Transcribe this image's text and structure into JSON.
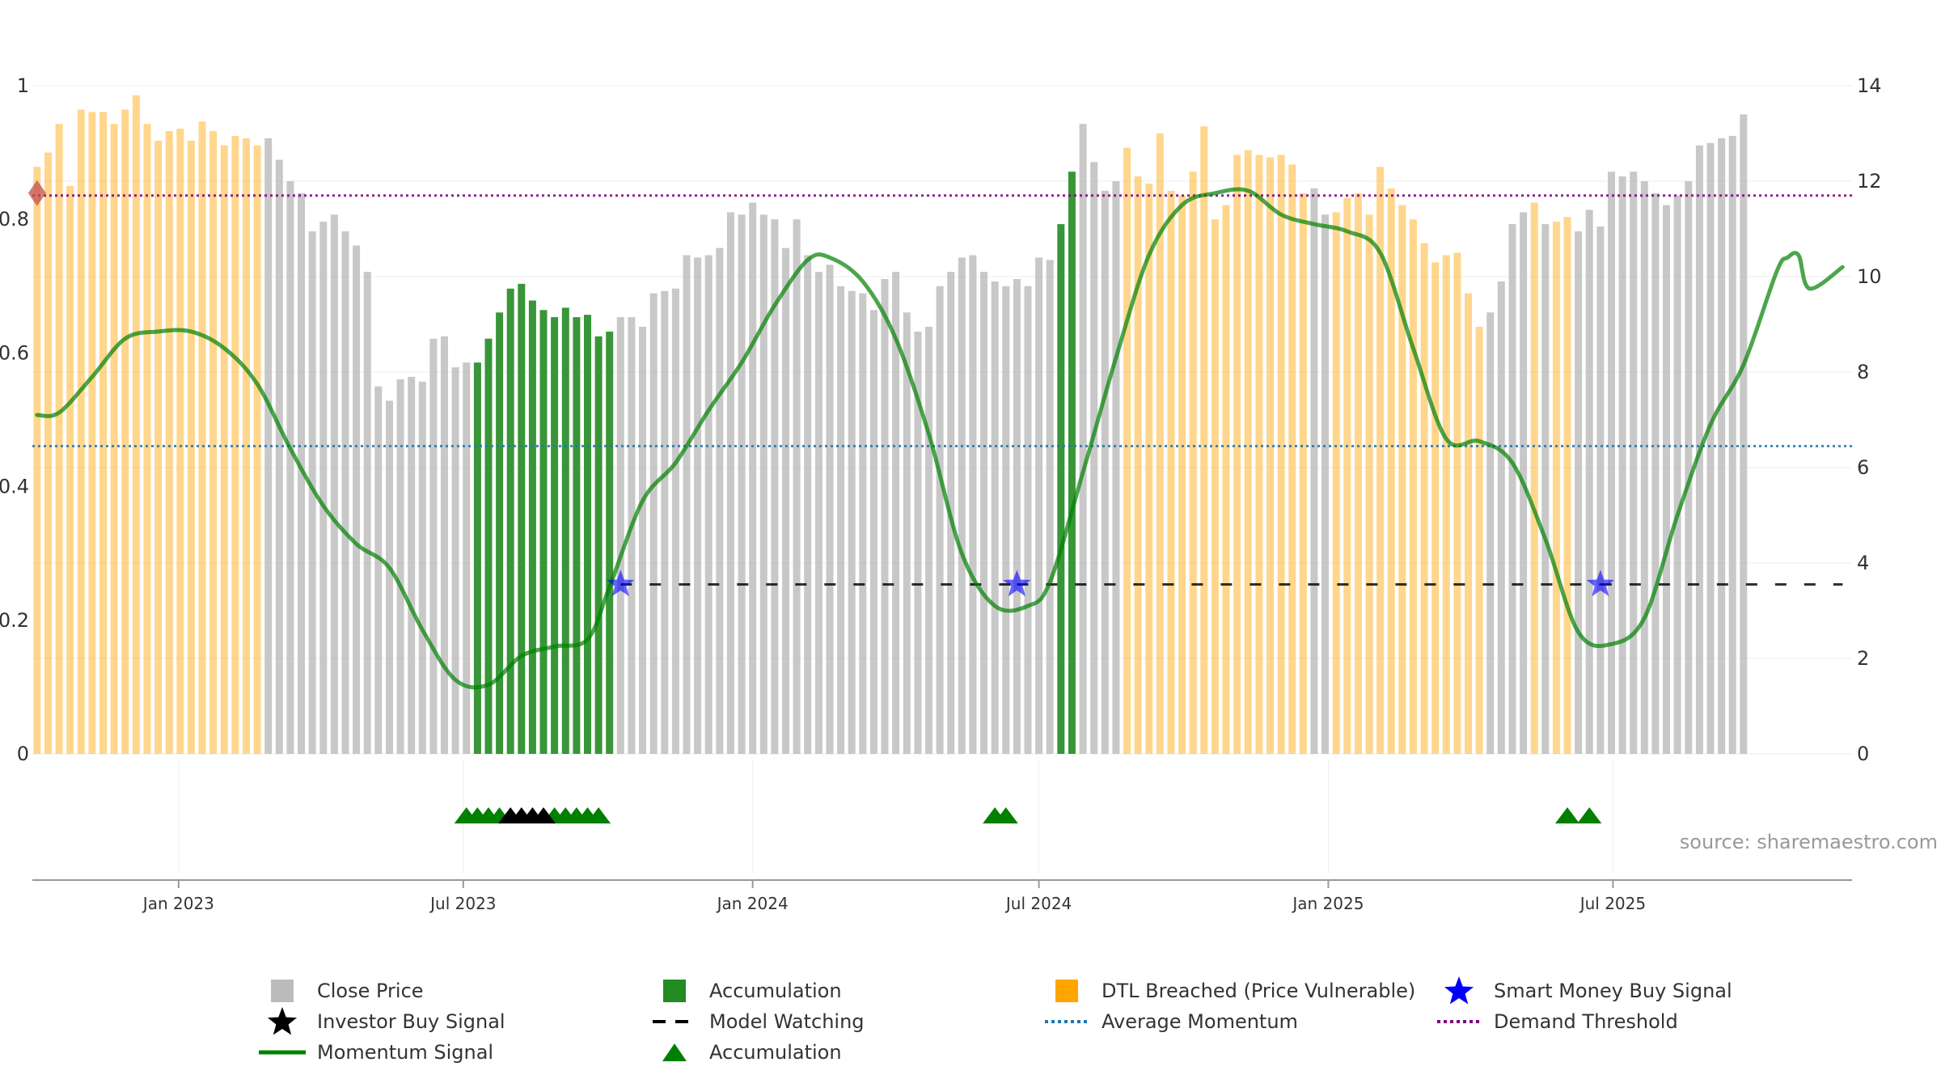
{
  "chart_data": {
    "type": "bar",
    "x_axis": {
      "tick_labels": [
        "Jan 2023",
        "Jul 2023",
        "Jan 2024",
        "Jul 2024",
        "Jan 2025",
        "Jul 2025"
      ]
    },
    "y_left": {
      "range": [
        0,
        1
      ],
      "tick_labels": [
        "0",
        "0.2",
        "0.4",
        "0.6",
        "0.8",
        "1"
      ]
    },
    "y_right": {
      "range": [
        0,
        14
      ],
      "tick_labels": [
        "0",
        "2",
        "4",
        "6",
        "8",
        "10",
        "12",
        "14"
      ]
    },
    "bar_states": {
      "G": "Close Price",
      "A": "Accumulation",
      "O": "DTL Breached (Price Vulnerable)"
    },
    "bars": {
      "start_date": "2022-10-03",
      "period": "weekly",
      "values": [
        12.3,
        12.6,
        13.2,
        11.9,
        13.5,
        13.45,
        13.45,
        13.2,
        13.5,
        13.8,
        13.2,
        12.85,
        13.05,
        13.1,
        12.85,
        13.25,
        13.05,
        12.75,
        12.95,
        12.9,
        12.75,
        12.9,
        12.45,
        12.0,
        11.75,
        10.95,
        11.15,
        11.3,
        10.95,
        10.65,
        10.1,
        7.7,
        7.4,
        7.85,
        7.9,
        7.8,
        8.7,
        8.75,
        8.1,
        8.2,
        8.2,
        8.7,
        9.25,
        9.75,
        9.85,
        9.5,
        9.3,
        9.15,
        9.35,
        9.15,
        9.2,
        8.75,
        8.85,
        9.15,
        9.15,
        8.95,
        9.65,
        9.7,
        9.75,
        10.45,
        10.4,
        10.45,
        10.6,
        11.35,
        11.3,
        11.55,
        11.3,
        11.2,
        10.6,
        11.2,
        10.45,
        10.1,
        10.25,
        9.8,
        9.7,
        9.65,
        9.3,
        9.95,
        10.1,
        9.25,
        8.85,
        8.95,
        9.8,
        10.1,
        10.4,
        10.45,
        10.1,
        9.9,
        9.8,
        9.95,
        9.8,
        10.4,
        10.35,
        11.1,
        12.2,
        13.2,
        12.4,
        11.8,
        12.0,
        12.7,
        12.1,
        11.95,
        13.0,
        11.8,
        11.7,
        12.2,
        13.15,
        11.2,
        11.5,
        12.55,
        12.65,
        12.55,
        12.5,
        12.55,
        12.35,
        11.75,
        11.85,
        11.3,
        11.35,
        11.65,
        11.75,
        11.3,
        12.3,
        11.85,
        11.5,
        11.2,
        10.7,
        10.3,
        10.45,
        10.5,
        9.65,
        8.95,
        9.25,
        9.9,
        11.1,
        11.35,
        11.55,
        11.1,
        11.15,
        11.25,
        10.95,
        11.4,
        11.05,
        12.2,
        12.1,
        12.2,
        12.0,
        11.75,
        11.5,
        11.7,
        12.0,
        12.75,
        12.8,
        12.9,
        12.95,
        13.4
      ],
      "states": "OOOOOOOOOOOOOOOOOOOOOGGGGGGGGGGGGGGGGGGGAAAAAAAAAAAAAGGGGGGGGGGGGGGGGGGGGGGGGGGGGGGGGGGGGGGGGAAGGGGOOOOOOOOOOOOOOOOOGGOOOOOOOOOOOOOOGGGGOGOOGGGGGGGGGGGGGGGGGGGGAGAGGOOOOOOOOOOOOOOO"
    },
    "series": [
      {
        "name": "Momentum Signal",
        "color": "#008000",
        "y_axis": "right",
        "points": [
          [
            "2022-10-03",
            7.1
          ],
          [
            "2022-10-17",
            7.15
          ],
          [
            "2022-11-07",
            7.9
          ],
          [
            "2022-11-28",
            8.7
          ],
          [
            "2022-12-19",
            8.85
          ],
          [
            "2023-01-09",
            8.85
          ],
          [
            "2023-01-30",
            8.5
          ],
          [
            "2023-02-20",
            7.75
          ],
          [
            "2023-03-13",
            6.4
          ],
          [
            "2023-04-03",
            5.2
          ],
          [
            "2023-04-24",
            4.4
          ],
          [
            "2023-05-15",
            3.9
          ],
          [
            "2023-06-05",
            2.6
          ],
          [
            "2023-06-26",
            1.55
          ],
          [
            "2023-07-17",
            1.45
          ],
          [
            "2023-08-07",
            2.05
          ],
          [
            "2023-08-28",
            2.25
          ],
          [
            "2023-09-18",
            2.4
          ],
          [
            "2023-10-02",
            3.5
          ],
          [
            "2023-10-23",
            5.3
          ],
          [
            "2023-11-13",
            6.1
          ],
          [
            "2023-12-04",
            7.2
          ],
          [
            "2023-12-25",
            8.2
          ],
          [
            "2024-01-15",
            9.4
          ],
          [
            "2024-02-05",
            10.35
          ],
          [
            "2024-02-19",
            10.4
          ],
          [
            "2024-03-11",
            9.9
          ],
          [
            "2024-04-01",
            8.7
          ],
          [
            "2024-04-22",
            6.7
          ],
          [
            "2024-05-13",
            4.2
          ],
          [
            "2024-06-03",
            3.1
          ],
          [
            "2024-06-24",
            3.1
          ],
          [
            "2024-07-08",
            3.6
          ],
          [
            "2024-07-29",
            5.9
          ],
          [
            "2024-08-19",
            8.3
          ],
          [
            "2024-09-09",
            10.45
          ],
          [
            "2024-09-30",
            11.5
          ],
          [
            "2024-10-21",
            11.75
          ],
          [
            "2024-11-11",
            11.8
          ],
          [
            "2024-12-02",
            11.3
          ],
          [
            "2024-12-23",
            11.1
          ],
          [
            "2025-01-13",
            10.95
          ],
          [
            "2025-02-03",
            10.5
          ],
          [
            "2025-02-24",
            8.5
          ],
          [
            "2025-03-17",
            6.6
          ],
          [
            "2025-04-07",
            6.55
          ],
          [
            "2025-04-28",
            6.1
          ],
          [
            "2025-05-19",
            4.5
          ],
          [
            "2025-06-09",
            2.55
          ],
          [
            "2025-06-30",
            2.3
          ],
          [
            "2025-07-21",
            2.85
          ],
          [
            "2025-08-11",
            5.0
          ],
          [
            "2025-09-01",
            6.9
          ],
          [
            "2025-09-22",
            8.15
          ],
          [
            "2025-10-13",
            10.1
          ],
          [
            "2025-10-20",
            10.4
          ],
          [
            "2025-10-27",
            10.45
          ],
          [
            "2025-11-03",
            9.75
          ],
          [
            "2025-11-24",
            10.2
          ]
        ]
      },
      {
        "name": "Model Watching",
        "color": "#000000",
        "style": "dashed",
        "y": 3.55,
        "segments": [
          [
            "2023-10-09",
            "2024-06-17"
          ],
          [
            "2024-06-17",
            "2025-06-23"
          ],
          [
            "2025-06-23",
            "2025-11-24"
          ]
        ]
      }
    ],
    "reference_lines": [
      {
        "name": "Average Momentum",
        "color": "#1f77b4",
        "style": "dotted",
        "y": 6.45,
        "y_axis": "right"
      },
      {
        "name": "Demand Threshold",
        "color": "#800080",
        "style": "dotted",
        "y": 11.7,
        "y_axis": "right"
      }
    ],
    "smart_money_buy_signals": {
      "name": "Smart Money Buy Signal",
      "color": "#0000ff",
      "dates": [
        "2023-10-09",
        "2024-06-17",
        "2025-06-23"
      ],
      "y": 3.55
    },
    "event_markers": [
      {
        "name": "Accumulation",
        "color": "#008000",
        "dates": [
          "2023-07-03",
          "2023-07-10",
          "2023-07-17",
          "2023-07-24",
          "2023-08-28",
          "2023-09-04",
          "2023-09-11",
          "2023-09-18",
          "2023-09-25",
          "2024-06-03",
          "2024-06-10",
          "2025-06-02",
          "2025-06-16"
        ]
      },
      {
        "name": "Investor Buy Signal",
        "color": "#000000",
        "dates": [
          "2023-07-31",
          "2023-08-07",
          "2023-08-14",
          "2023-08-21"
        ]
      }
    ],
    "start_marker": {
      "color": "#c0504d",
      "date": "2022-10-03",
      "y": 11.75
    },
    "source_note": "source: sharemaestro.com",
    "legend": {
      "placement": "bottom",
      "entries": [
        {
          "label": "Close Price",
          "symbol": "square",
          "color": "#bbbbbb"
        },
        {
          "label": "Accumulation",
          "symbol": "square",
          "color": "#228b22"
        },
        {
          "label": "DTL Breached (Price Vulnerable)",
          "symbol": "square",
          "color": "#ffa500"
        },
        {
          "label": "Smart Money Buy Signal",
          "symbol": "star",
          "color": "#0000ff"
        },
        {
          "label": "Investor Buy Signal",
          "symbol": "star",
          "color": "#000000"
        },
        {
          "label": "Model Watching",
          "symbol": "dash",
          "color": "#000000"
        },
        {
          "label": "Average Momentum",
          "symbol": "dot",
          "color": "#1f77b4"
        },
        {
          "label": "Demand Threshold",
          "symbol": "dot",
          "color": "#800080"
        },
        {
          "label": "Momentum Signal",
          "symbol": "line",
          "color": "#008000"
        },
        {
          "label": "Accumulation",
          "symbol": "triangle",
          "color": "#008000"
        }
      ]
    },
    "grid": true
  }
}
